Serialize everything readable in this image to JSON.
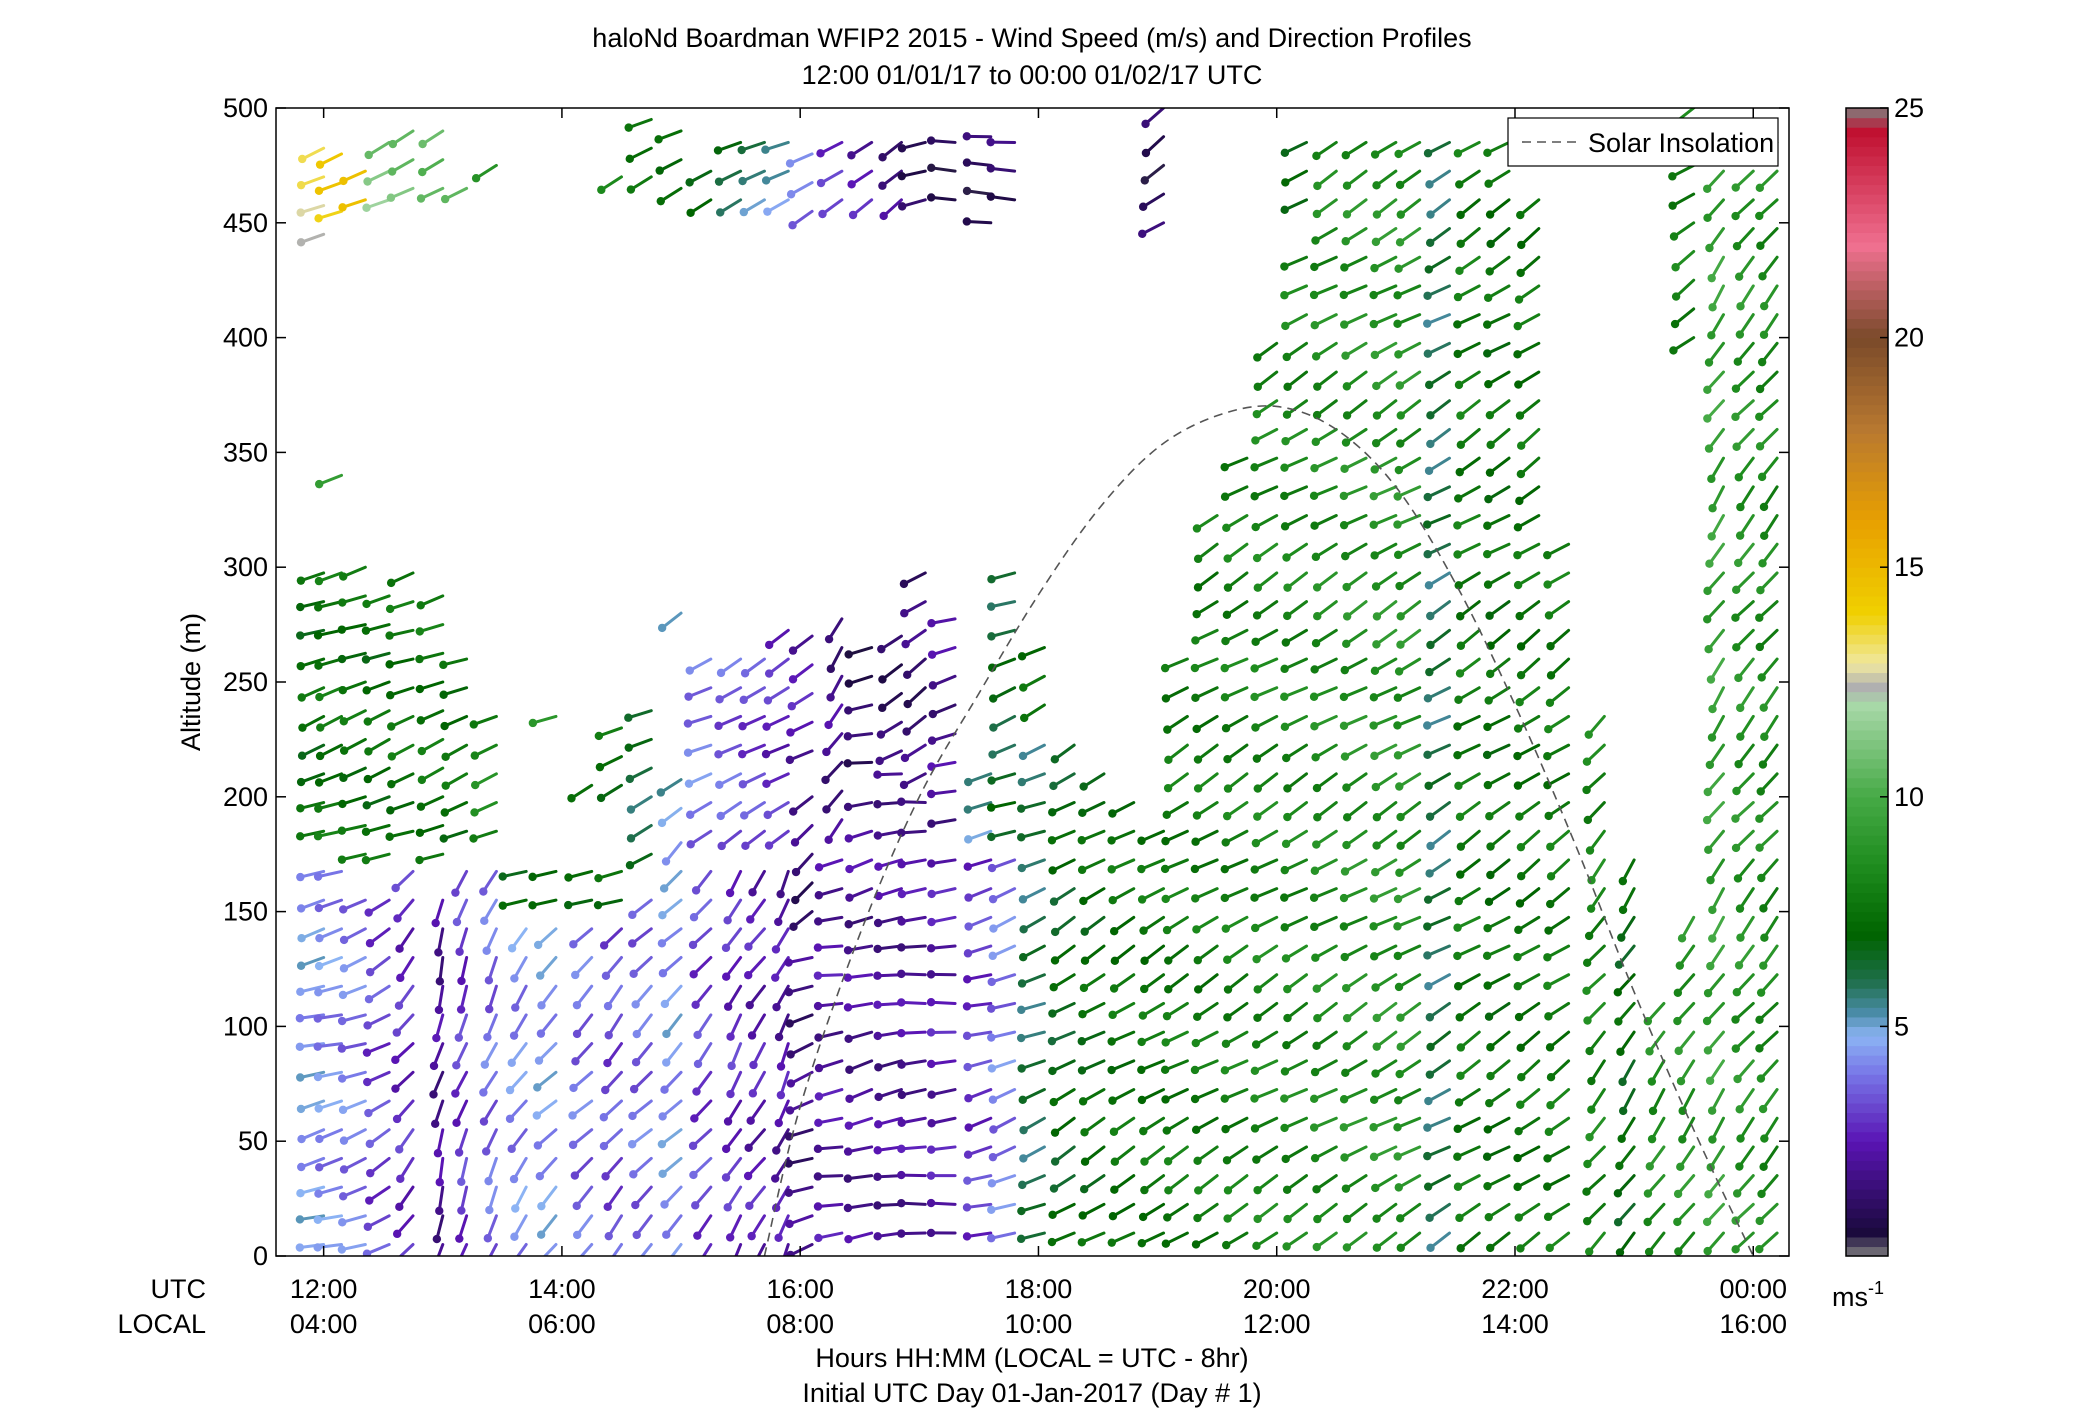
{
  "chart_data": {
    "type": "wind-barb-profile",
    "title": "haloNd Boardman WFIP2 2015 - Wind Speed (m/s) and Direction Profiles",
    "subtitle": "12:00 01/01/17 to 00:00 01/02/17  UTC",
    "ylabel": "Altitude (m)",
    "xlabel": "Hours HH:MM  (LOCAL = UTC - 8hr)",
    "xlabel2": "Initial UTC Day 01-Jan-2017 (Day # 1)",
    "utc_row_label": "UTC",
    "local_row_label": "LOCAL",
    "x_unit": "hours UTC",
    "xlim": [
      11.6,
      24.3
    ],
    "ylim": [
      0,
      500
    ],
    "x_ticks": [
      {
        "value": 12,
        "utc": "12:00",
        "local": "04:00"
      },
      {
        "value": 14,
        "utc": "14:00",
        "local": "06:00"
      },
      {
        "value": 16,
        "utc": "16:00",
        "local": "08:00"
      },
      {
        "value": 18,
        "utc": "18:00",
        "local": "10:00"
      },
      {
        "value": 20,
        "utc": "20:00",
        "local": "12:00"
      },
      {
        "value": 22,
        "utc": "22:00",
        "local": "14:00"
      },
      {
        "value": 24,
        "utc": "00:00",
        "local": "16:00"
      }
    ],
    "y_ticks": [
      "0",
      "50",
      "100",
      "150",
      "200",
      "250",
      "300",
      "350",
      "400",
      "450",
      "500"
    ],
    "legend": {
      "label": "Solar Insolation",
      "position": "top-right"
    },
    "colorbar": {
      "unit": "ms",
      "unit_exp": "-1",
      "range": [
        0,
        25
      ],
      "ticks": [
        "5",
        "10",
        "15",
        "20",
        "25"
      ],
      "stops": [
        {
          "v": 0,
          "c": "#808080"
        },
        {
          "v": 0.5,
          "c": "#1a0a3c"
        },
        {
          "v": 2.5,
          "c": "#5a14b4"
        },
        {
          "v": 4,
          "c": "#7878e8"
        },
        {
          "v": 4.8,
          "c": "#8cb4f4"
        },
        {
          "v": 5.3,
          "c": "#4a8ca8"
        },
        {
          "v": 6,
          "c": "#1e6e4a"
        },
        {
          "v": 7,
          "c": "#006400"
        },
        {
          "v": 8.5,
          "c": "#1e8c1e"
        },
        {
          "v": 10,
          "c": "#46aa46"
        },
        {
          "v": 12,
          "c": "#a8d8a8"
        },
        {
          "v": 12.4,
          "c": "#b0b0b0"
        },
        {
          "v": 12.9,
          "c": "#f0e8a0"
        },
        {
          "v": 14,
          "c": "#f0d000"
        },
        {
          "v": 16,
          "c": "#e8a000"
        },
        {
          "v": 18,
          "c": "#b87830"
        },
        {
          "v": 20,
          "c": "#7a4a2a"
        },
        {
          "v": 22,
          "c": "#f07090"
        },
        {
          "v": 24.5,
          "c": "#c01030"
        },
        {
          "v": 25,
          "c": "#808080"
        }
      ]
    },
    "solar_insolation": {
      "x": [
        15.7,
        16.0,
        16.5,
        17.0,
        17.5,
        18.0,
        18.5,
        19.0,
        19.5,
        20.0,
        20.5,
        21.0,
        21.5,
        22.0,
        22.5,
        23.0,
        23.5,
        24.0
      ],
      "y": [
        0,
        65,
        140,
        200,
        245,
        288,
        325,
        352,
        366,
        370,
        360,
        335,
        293,
        240,
        180,
        115,
        55,
        0
      ]
    },
    "wind_profiles": [
      {
        "t": 12.0,
        "ranges": [
          [
            5,
            170,
            4.6,
            255
          ],
          [
            185,
            300,
            7.2,
            250
          ],
          [
            445,
            490,
            13.0,
            245
          ]
        ]
      },
      {
        "t": 12.15,
        "ranges": [
          [
            5,
            170,
            4.2,
            255
          ],
          [
            185,
            305,
            7.6,
            250
          ],
          [
            340,
            340,
            9.5,
            250
          ],
          [
            455,
            490,
            14.0,
            245
          ]
        ]
      },
      {
        "t": 12.35,
        "ranges": [
          [
            5,
            160,
            4.0,
            250
          ],
          [
            175,
            300,
            7.4,
            250
          ],
          [
            460,
            475,
            14.2,
            245
          ]
        ]
      },
      {
        "t": 12.55,
        "ranges": [
          [
            5,
            160,
            3.2,
            240
          ],
          [
            175,
            295,
            7.3,
            248
          ],
          [
            460,
            490,
            11.2,
            245
          ]
        ]
      },
      {
        "t": 12.75,
        "ranges": [
          [
            5,
            175,
            2.8,
            220
          ],
          [
            185,
            305,
            7.5,
            250
          ],
          [
            465,
            490,
            11.0,
            245
          ]
        ]
      },
      {
        "t": 13.0,
        "ranges": [
          [
            5,
            160,
            2.0,
            195
          ],
          [
            175,
            290,
            7.6,
            248
          ],
          [
            465,
            490,
            10.8,
            245
          ]
        ]
      },
      {
        "t": 13.2,
        "ranges": [
          [
            5,
            175,
            3.0,
            200
          ],
          [
            185,
            270,
            7.4,
            248
          ],
          [
            465,
            475,
            11.0,
            245
          ]
        ]
      },
      {
        "t": 13.45,
        "ranges": [
          [
            5,
            175,
            3.8,
            205
          ],
          [
            185,
            235,
            8.3,
            250
          ],
          [
            475,
            475,
            9.0,
            245
          ]
        ]
      },
      {
        "t": 13.7,
        "ranges": [
          [
            5,
            145,
            4.2,
            215
          ],
          [
            155,
            175,
            7.2,
            250
          ]
        ]
      },
      {
        "t": 13.95,
        "ranges": [
          [
            5,
            145,
            4.5,
            225
          ],
          [
            155,
            175,
            7.5,
            250
          ],
          [
            235,
            235,
            9.0,
            250
          ]
        ]
      },
      {
        "t": 14.25,
        "ranges": [
          [
            5,
            145,
            3.8,
            225
          ],
          [
            155,
            175,
            7.4,
            250
          ],
          [
            205,
            205,
            7.8,
            245
          ]
        ]
      },
      {
        "t": 14.5,
        "ranges": [
          [
            5,
            145,
            3.4,
            220
          ],
          [
            155,
            175,
            7.3,
            250
          ],
          [
            205,
            235,
            7.4,
            245
          ],
          [
            470,
            475,
            8.0,
            245
          ]
        ]
      },
      {
        "t": 14.75,
        "ranges": [
          [
            5,
            165,
            3.8,
            225
          ],
          [
            175,
            240,
            6.2,
            245
          ],
          [
            470,
            500,
            7.8,
            245
          ]
        ]
      },
      {
        "t": 15.0,
        "ranges": [
          [
            5,
            185,
            4.5,
            225
          ],
          [
            195,
            210,
            5.4,
            240
          ],
          [
            280,
            290,
            4.6,
            240
          ],
          [
            465,
            500,
            7.5,
            245
          ]
        ]
      },
      {
        "t": 15.25,
        "ranges": [
          [
            5,
            175,
            3.2,
            220
          ],
          [
            185,
            265,
            4.0,
            245
          ],
          [
            460,
            480,
            7.3,
            245
          ]
        ]
      },
      {
        "t": 15.5,
        "ranges": [
          [
            5,
            175,
            2.8,
            210
          ],
          [
            185,
            265,
            3.6,
            240
          ],
          [
            460,
            490,
            6.4,
            245
          ]
        ]
      },
      {
        "t": 15.7,
        "ranges": [
          [
            5,
            175,
            2.5,
            215
          ],
          [
            185,
            265,
            3.2,
            240
          ],
          [
            460,
            490,
            5.6,
            245
          ]
        ]
      },
      {
        "t": 15.9,
        "ranges": [
          [
            5,
            175,
            2.3,
            205
          ],
          [
            185,
            280,
            2.8,
            240
          ],
          [
            460,
            490,
            5.0,
            245
          ]
        ]
      },
      {
        "t": 16.1,
        "ranges": [
          [
            5,
            140,
            1.6,
            250
          ],
          [
            150,
            210,
            1.4,
            230
          ],
          [
            220,
            280,
            2.4,
            240
          ],
          [
            455,
            490,
            3.8,
            240
          ]
        ]
      },
      {
        "t": 16.35,
        "ranges": [
          [
            10,
            180,
            2.2,
            260
          ],
          [
            190,
            280,
            1.8,
            215
          ],
          [
            460,
            490,
            2.8,
            235
          ]
        ]
      },
      {
        "t": 16.6,
        "ranges": [
          [
            10,
            200,
            2.0,
            255
          ],
          [
            215,
            265,
            1.0,
            260
          ],
          [
            460,
            490,
            2.4,
            230
          ]
        ]
      },
      {
        "t": 16.85,
        "ranges": [
          [
            10,
            210,
            2.0,
            260
          ],
          [
            220,
            275,
            1.2,
            240
          ],
          [
            460,
            490,
            1.8,
            225
          ]
        ]
      },
      {
        "t": 17.05,
        "ranges": [
          [
            10,
            200,
            2.1,
            265
          ],
          [
            210,
            305,
            1.4,
            235
          ],
          [
            460,
            490,
            1.2,
            250
          ]
        ]
      },
      {
        "t": 17.3,
        "ranges": [
          [
            10,
            180,
            2.4,
            265
          ],
          [
            190,
            280,
            1.9,
            255
          ],
          [
            460,
            490,
            1.0,
            270
          ]
        ]
      },
      {
        "t": 17.6,
        "ranges": [
          [
            10,
            175,
            3.0,
            255
          ],
          [
            185,
            215,
            5.2,
            245
          ],
          [
            450,
            490,
            1.0,
            270
          ]
        ]
      },
      {
        "t": 17.8,
        "ranges": [
          [
            10,
            175,
            4.0,
            250
          ],
          [
            185,
            305,
            6.4,
            250
          ],
          [
            460,
            495,
            1.2,
            270
          ]
        ]
      },
      {
        "t": 18.05,
        "ranges": [
          [
            10,
            230,
            6.0,
            248
          ],
          [
            240,
            265,
            7.2,
            245
          ]
        ]
      },
      {
        "t": 18.3,
        "ranges": [
          [
            10,
            230,
            6.8,
            240
          ]
        ]
      },
      {
        "t": 18.55,
        "ranges": [
          [
            10,
            215,
            7.2,
            240
          ]
        ]
      },
      {
        "t": 18.8,
        "ranges": [
          [
            10,
            205,
            7.5,
            240
          ]
        ]
      },
      {
        "t": 19.05,
        "ranges": [
          [
            10,
            185,
            7.6,
            240
          ],
          [
            450,
            500,
            1.0,
            235
          ]
        ]
      },
      {
        "t": 19.25,
        "ranges": [
          [
            10,
            265,
            7.8,
            240
          ]
        ]
      },
      {
        "t": 19.5,
        "ranges": [
          [
            10,
            330,
            7.8,
            240
          ]
        ]
      },
      {
        "t": 19.75,
        "ranges": [
          [
            10,
            350,
            8.0,
            240
          ]
        ]
      },
      {
        "t": 20.0,
        "ranges": [
          [
            10,
            405,
            8.2,
            240
          ]
        ]
      },
      {
        "t": 20.25,
        "ranges": [
          [
            10,
            445,
            8.2,
            240
          ],
          [
            460,
            495,
            6.6,
            250
          ]
        ]
      },
      {
        "t": 20.5,
        "ranges": [
          [
            10,
            490,
            8.4,
            240
          ]
        ]
      },
      {
        "t": 20.75,
        "ranges": [
          [
            10,
            490,
            8.6,
            240
          ]
        ]
      },
      {
        "t": 21.0,
        "ranges": [
          [
            10,
            490,
            8.8,
            240
          ]
        ]
      },
      {
        "t": 21.2,
        "ranges": [
          [
            10,
            490,
            8.7,
            240
          ]
        ]
      },
      {
        "t": 21.45,
        "ranges": [
          [
            10,
            490,
            6.0,
            240
          ]
        ]
      },
      {
        "t": 21.7,
        "ranges": [
          [
            10,
            490,
            7.8,
            238
          ]
        ]
      },
      {
        "t": 21.95,
        "ranges": [
          [
            10,
            490,
            7.4,
            238
          ]
        ]
      },
      {
        "t": 22.2,
        "ranges": [
          [
            10,
            470,
            7.6,
            235
          ]
        ]
      },
      {
        "t": 22.45,
        "ranges": [
          [
            10,
            320,
            7.8,
            235
          ]
        ]
      },
      {
        "t": 22.75,
        "ranges": [
          [
            10,
            240,
            8.2,
            220
          ]
        ]
      },
      {
        "t": 23.0,
        "ranges": [
          [
            10,
            180,
            7.0,
            215
          ]
        ]
      },
      {
        "t": 23.25,
        "ranges": [
          [
            10,
            120,
            8.6,
            215
          ]
        ]
      },
      {
        "t": 23.5,
        "ranges": [
          [
            10,
            150,
            8.8,
            215
          ],
          [
            400,
            500,
            8.0,
            235
          ]
        ]
      },
      {
        "t": 23.75,
        "ranges": [
          [
            10,
            490,
            9.4,
            215
          ]
        ]
      },
      {
        "t": 24.0,
        "ranges": [
          [
            10,
            490,
            8.8,
            220
          ]
        ]
      },
      {
        "t": 24.2,
        "ranges": [
          [
            10,
            490,
            8.4,
            220
          ]
        ]
      }
    ]
  }
}
